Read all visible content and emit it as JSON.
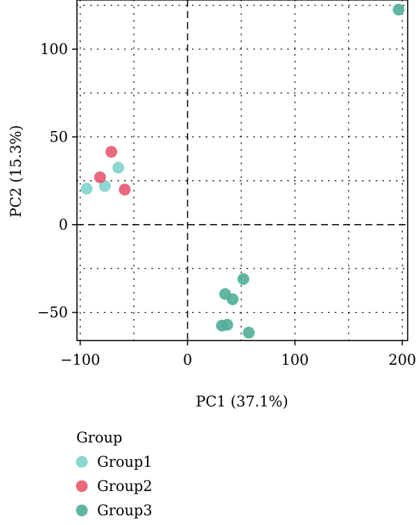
{
  "chart_data": {
    "type": "scatter",
    "title": "",
    "xlabel": "PC1 (37.1%)",
    "ylabel": "PC2 (15.3%)",
    "xlim": [
      -103,
      205
    ],
    "ylim": [
      -66,
      128
    ],
    "xticks": [
      -100,
      0,
      100,
      200
    ],
    "xtick_labels": [
      "−100",
      "0",
      "100",
      "200"
    ],
    "yticks": [
      -50,
      0,
      50,
      100
    ],
    "ytick_labels": [
      "−50",
      "0",
      "50",
      "100"
    ],
    "grid": "dotted",
    "reference_lines": {
      "x": 0,
      "y": 0,
      "style": "dashed"
    },
    "legend": {
      "title": "Group",
      "placement": "bottom-left",
      "entries": [
        "Group1",
        "Group2",
        "Group3"
      ]
    },
    "series": [
      {
        "name": "Group1",
        "color": "#7fd3cc",
        "points": [
          {
            "x": -94,
            "y": 20.5
          },
          {
            "x": -77,
            "y": 22
          },
          {
            "x": -64.5,
            "y": 32.5
          }
        ]
      },
      {
        "name": "Group2",
        "color": "#e8596f",
        "points": [
          {
            "x": -81.5,
            "y": 27
          },
          {
            "x": -71,
            "y": 41.5
          },
          {
            "x": -58.5,
            "y": 20
          }
        ]
      },
      {
        "name": "Group3",
        "color": "#4fae98",
        "points": [
          {
            "x": 196.5,
            "y": 122.5
          },
          {
            "x": 52,
            "y": -31
          },
          {
            "x": 35,
            "y": -39.5
          },
          {
            "x": 42,
            "y": -42.5
          },
          {
            "x": 32,
            "y": -57.5
          },
          {
            "x": 37,
            "y": -57
          },
          {
            "x": 57,
            "y": -61.5
          }
        ]
      }
    ]
  }
}
